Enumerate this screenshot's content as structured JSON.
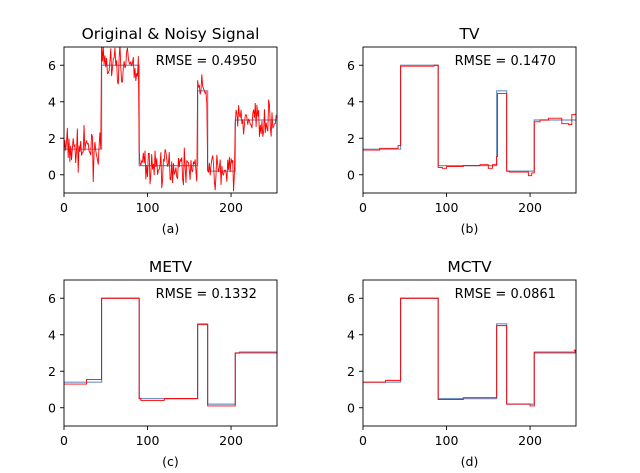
{
  "figure": {
    "colors": {
      "clean": "#6f93c8",
      "estimate": "#ff0000",
      "axes": "#000000"
    },
    "panels": [
      {
        "id": "a",
        "title": "Original & Noisy Signal",
        "caption": "(a)",
        "rmse_label": "RMSE = 0.4950",
        "kind": "noisy"
      },
      {
        "id": "b",
        "title": "TV",
        "caption": "(b)",
        "rmse_label": "RMSE = 0.1470",
        "kind": "tv"
      },
      {
        "id": "c",
        "title": "METV",
        "caption": "(c)",
        "rmse_label": "RMSE = 0.1332",
        "kind": "metv"
      },
      {
        "id": "d",
        "title": "MCTV",
        "caption": "(d)",
        "rmse_label": "RMSE = 0.0861",
        "kind": "mctv"
      }
    ]
  },
  "chart_data": [
    {
      "type": "line",
      "title": "Original & Noisy Signal",
      "caption": "(a)",
      "annotation": "RMSE = 0.4950",
      "xlim": [
        0,
        255
      ],
      "ylim": [
        -1,
        7
      ],
      "xticks": [
        0,
        100,
        200
      ],
      "yticks": [
        0,
        2,
        4,
        6
      ],
      "grid": false,
      "series": [
        {
          "role": "clean",
          "color": "#6f93c8",
          "segments": [
            [
              0,
              45,
              1.4
            ],
            [
              45,
              90,
              6.0
            ],
            [
              90,
              160,
              0.5
            ],
            [
              160,
              172,
              4.6
            ],
            [
              172,
              205,
              0.2
            ],
            [
              205,
              255,
              3.0
            ]
          ]
        },
        {
          "role": "noisy",
          "color": "#ff0000",
          "noise_std": 0.5
        }
      ]
    },
    {
      "type": "line",
      "title": "TV",
      "caption": "(b)",
      "annotation": "RMSE = 0.1470",
      "xlim": [
        0,
        255
      ],
      "ylim": [
        -1,
        7
      ],
      "xticks": [
        0,
        100,
        200
      ],
      "yticks": [
        0,
        2,
        4,
        6
      ],
      "grid": false,
      "series": [
        {
          "role": "clean",
          "color": "#6f93c8",
          "segments": [
            [
              0,
              45,
              1.4
            ],
            [
              45,
              90,
              6.0
            ],
            [
              90,
              160,
              0.5
            ],
            [
              160,
              172,
              4.6
            ],
            [
              172,
              205,
              0.2
            ],
            [
              205,
              255,
              3.0
            ]
          ]
        },
        {
          "role": "estimate",
          "color": "#ff0000",
          "segments": [
            [
              0,
              20,
              1.35
            ],
            [
              20,
              42,
              1.45
            ],
            [
              42,
              45,
              1.6
            ],
            [
              45,
              85,
              5.95
            ],
            [
              85,
              90,
              6.0
            ],
            [
              90,
              95,
              0.4
            ],
            [
              95,
              100,
              0.35
            ],
            [
              100,
              120,
              0.45
            ],
            [
              120,
              140,
              0.5
            ],
            [
              140,
              150,
              0.55
            ],
            [
              150,
              155,
              0.35
            ],
            [
              155,
              160,
              0.55
            ],
            [
              160,
              161,
              1.0
            ],
            [
              161,
              172,
              4.45
            ],
            [
              172,
              175,
              0.2
            ],
            [
              175,
              198,
              0.15
            ],
            [
              198,
              202,
              -0.05
            ],
            [
              202,
              205,
              0.1
            ],
            [
              205,
              212,
              2.9
            ],
            [
              212,
              222,
              3.0
            ],
            [
              222,
              238,
              3.1
            ],
            [
              238,
              246,
              2.8
            ],
            [
              246,
              250,
              2.75
            ],
            [
              250,
              255,
              3.3
            ]
          ]
        }
      ]
    },
    {
      "type": "line",
      "title": "METV",
      "caption": "(c)",
      "annotation": "RMSE = 0.1332",
      "xlim": [
        0,
        255
      ],
      "ylim": [
        -1,
        7
      ],
      "xticks": [
        0,
        100,
        200
      ],
      "yticks": [
        0,
        2,
        4,
        6
      ],
      "grid": false,
      "series": [
        {
          "role": "clean",
          "color": "#6f93c8",
          "segments": [
            [
              0,
              45,
              1.4
            ],
            [
              45,
              90,
              6.0
            ],
            [
              90,
              160,
              0.5
            ],
            [
              160,
              172,
              4.6
            ],
            [
              172,
              205,
              0.2
            ],
            [
              205,
              255,
              3.0
            ]
          ]
        },
        {
          "role": "estimate",
          "color": "#ff0000",
          "segments": [
            [
              0,
              27,
              1.3
            ],
            [
              27,
              45,
              1.55
            ],
            [
              45,
              90,
              6.0
            ],
            [
              90,
              92,
              0.5
            ],
            [
              92,
              120,
              0.4
            ],
            [
              120,
              160,
              0.5
            ],
            [
              160,
              172,
              4.55
            ],
            [
              172,
              205,
              0.1
            ],
            [
              205,
              210,
              3.0
            ],
            [
              210,
              255,
              3.05
            ]
          ]
        }
      ]
    },
    {
      "type": "line",
      "title": "MCTV",
      "caption": "(d)",
      "annotation": "RMSE = 0.0861",
      "xlim": [
        0,
        255
      ],
      "ylim": [
        -1,
        7
      ],
      "xticks": [
        0,
        100,
        200
      ],
      "yticks": [
        0,
        2,
        4,
        6
      ],
      "grid": false,
      "series": [
        {
          "role": "clean",
          "color": "#6f93c8",
          "segments": [
            [
              0,
              45,
              1.4
            ],
            [
              45,
              90,
              6.0
            ],
            [
              90,
              160,
              0.5
            ],
            [
              160,
              172,
              4.6
            ],
            [
              172,
              205,
              0.2
            ],
            [
              205,
              255,
              3.0
            ]
          ]
        },
        {
          "role": "estimate",
          "color": "#ff0000",
          "segments": [
            [
              0,
              27,
              1.4
            ],
            [
              27,
              45,
              1.5
            ],
            [
              45,
              90,
              6.0
            ],
            [
              90,
              120,
              0.45
            ],
            [
              120,
              160,
              0.55
            ],
            [
              160,
              172,
              4.5
            ],
            [
              172,
              200,
              0.2
            ],
            [
              200,
              205,
              0.1
            ],
            [
              205,
              255,
              3.05
            ],
            [
              253,
              255,
              3.15
            ]
          ]
        }
      ]
    }
  ]
}
